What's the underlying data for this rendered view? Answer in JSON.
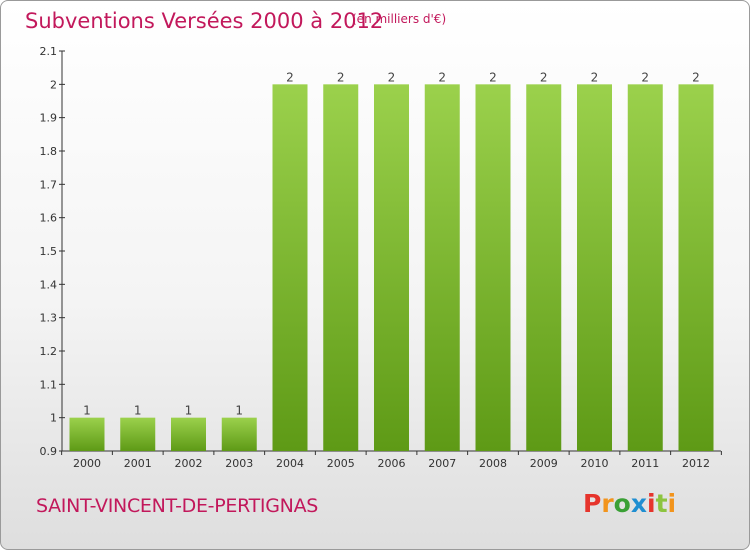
{
  "header": {
    "title": "Subventions Versées 2000 à 2012",
    "unit": "(en milliers d'€)"
  },
  "footer": {
    "commune": "SAINT-VINCENT-DE-PERTIGNAS",
    "logo": {
      "text": "Proxiti",
      "colors": [
        "#e6342c",
        "#f2941c",
        "#3aa035",
        "#1f8ed1",
        "#e6342c",
        "#8cc43f",
        "#f2941c"
      ]
    }
  },
  "colors": {
    "title": "#c2185b",
    "bar_light": "#9bd14c",
    "bar_dark": "#5e9a16",
    "axis": "#333333"
  },
  "chart_data": {
    "type": "bar",
    "title": "Subventions Versées 2000 à 2012",
    "ylabel": "(en milliers d'€)",
    "xlabel": "",
    "categories": [
      "2000",
      "2001",
      "2002",
      "2003",
      "2004",
      "2005",
      "2006",
      "2007",
      "2008",
      "2009",
      "2010",
      "2011",
      "2012"
    ],
    "values": [
      1,
      1,
      1,
      1,
      2,
      2,
      2,
      2,
      2,
      2,
      2,
      2,
      2
    ],
    "data_labels": [
      "1",
      "1",
      "1",
      "1",
      "2",
      "2",
      "2",
      "2",
      "2",
      "2",
      "2",
      "2",
      "2"
    ],
    "ylim": [
      0.9,
      2.1
    ],
    "yticks": [
      0.9,
      1,
      1.1,
      1.2,
      1.3,
      1.4,
      1.5,
      1.6,
      1.7,
      1.8,
      1.9,
      2,
      2.1
    ],
    "ytick_labels": [
      "0.9",
      "1",
      "1.1",
      "1.2",
      "1.3",
      "1.4",
      "1.5",
      "1.6",
      "1.7",
      "1.8",
      "1.9",
      "2",
      "2.1"
    ],
    "grid": false
  }
}
